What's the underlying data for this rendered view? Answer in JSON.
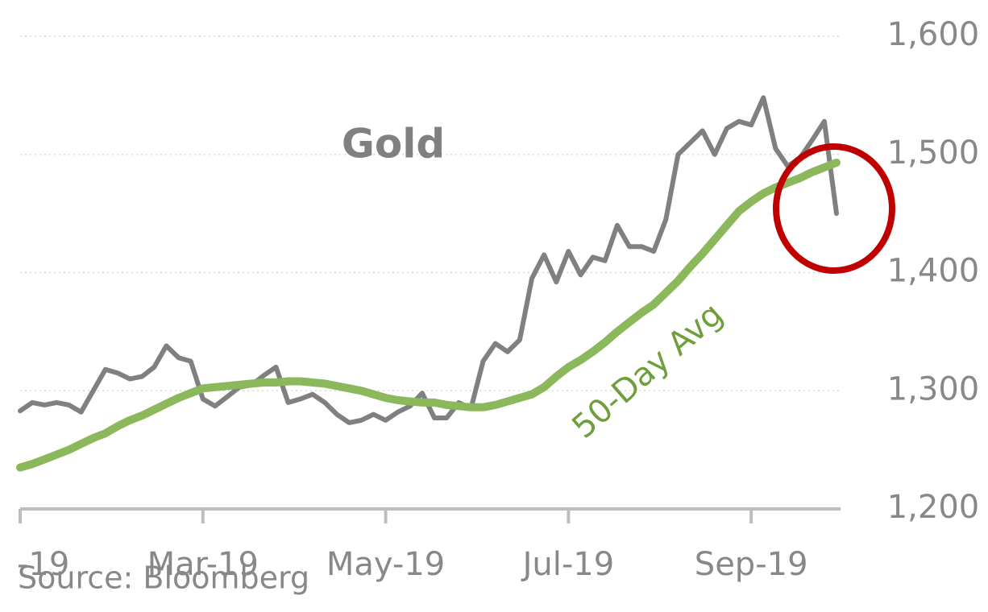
{
  "chart_data": {
    "type": "line",
    "categories": [
      "-19",
      null,
      null,
      null,
      null,
      null,
      null,
      null,
      null,
      null,
      null,
      null,
      null,
      null,
      null,
      "Mar-19",
      null,
      null,
      null,
      null,
      null,
      null,
      null,
      null,
      null,
      null,
      null,
      null,
      null,
      null,
      "May-19",
      null,
      null,
      null,
      null,
      null,
      null,
      null,
      null,
      null,
      null,
      null,
      null,
      null,
      null,
      "Jul-19",
      null,
      null,
      null,
      null,
      null,
      null,
      null,
      null,
      null,
      null,
      null,
      null,
      null,
      null,
      "Sep-19",
      null,
      null,
      null,
      null,
      null,
      null,
      null
    ],
    "series": [
      {
        "name": "Gold",
        "color": "#808080",
        "values": [
          1283,
          1290,
          1288,
          1290,
          1288,
          1282,
          1300,
          1318,
          1315,
          1310,
          1312,
          1320,
          1338,
          1328,
          1325,
          1293,
          1287,
          1295,
          1303,
          1305,
          1313,
          1320,
          1290,
          1293,
          1297,
          1290,
          1280,
          1273,
          1275,
          1280,
          1275,
          1282,
          1287,
          1298,
          1277,
          1277,
          1290,
          1285,
          1325,
          1340,
          1333,
          1343,
          1395,
          1415,
          1392,
          1418,
          1398,
          1413,
          1410,
          1440,
          1422,
          1422,
          1418,
          1445,
          1500,
          1510,
          1520,
          1500,
          1522,
          1528,
          1525,
          1548,
          1505,
          1490,
          1497,
          1512,
          1528,
          1450
        ]
      },
      {
        "name": "50-Day Avg",
        "color": "#8bb85a",
        "values": [
          1235,
          1238,
          1242,
          1246,
          1250,
          1255,
          1260,
          1264,
          1270,
          1275,
          1279,
          1284,
          1289,
          1294,
          1298,
          1302,
          1303,
          1304,
          1305,
          1306,
          1307,
          1307,
          1308,
          1308,
          1307,
          1306,
          1304,
          1302,
          1300,
          1297,
          1294,
          1292,
          1291,
          1290,
          1290,
          1288,
          1287,
          1286,
          1286,
          1288,
          1291,
          1294,
          1297,
          1303,
          1312,
          1320,
          1326,
          1333,
          1341,
          1350,
          1358,
          1366,
          1373,
          1383,
          1393,
          1405,
          1416,
          1428,
          1440,
          1452,
          1460,
          1467,
          1472,
          1476,
          1480,
          1485,
          1489,
          1493
        ]
      }
    ],
    "ylim": [
      1200,
      1600
    ],
    "yticks": [
      {
        "value": 1200,
        "label": "1,200"
      },
      {
        "value": 1300,
        "label": "1,300"
      },
      {
        "value": 1400,
        "label": "1,400"
      },
      {
        "value": 1500,
        "label": "1,500"
      },
      {
        "value": 1600,
        "label": "1,600"
      }
    ],
    "grid": true,
    "source": "Source: Bloomberg"
  }
}
